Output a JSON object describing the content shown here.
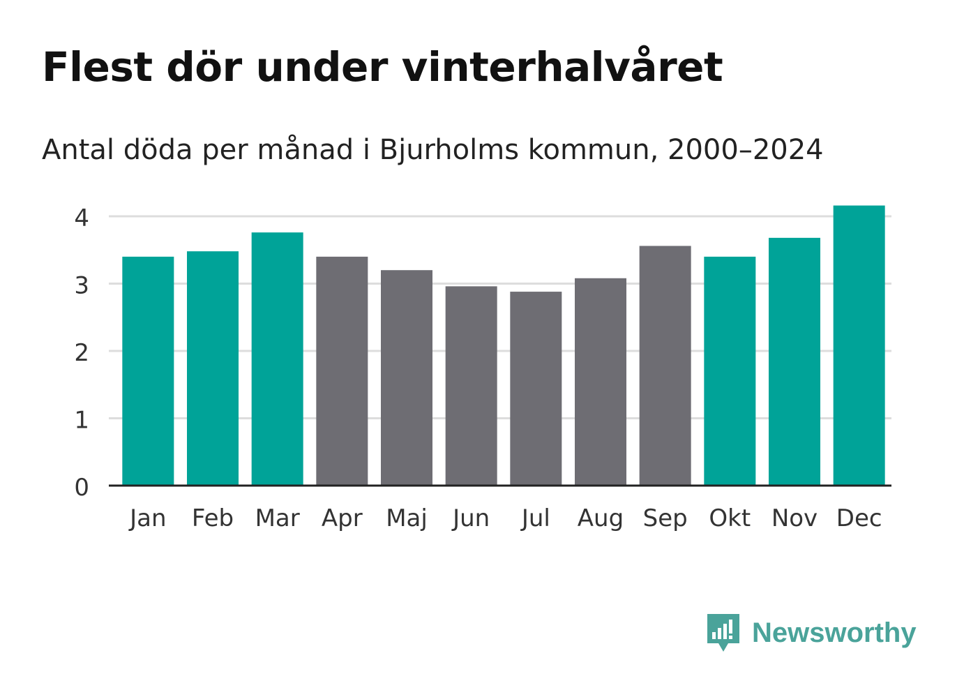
{
  "title": "Flest dör under vinterhalvåret",
  "subtitle": "Antal döda per månad i Bjurholms kommun, 2000–2024",
  "brand": {
    "name": "Newsworthy",
    "color": "#4aa39a",
    "icon": "bar-chart-speech-icon"
  },
  "colors": {
    "winter": "#00a398",
    "summer": "#6e6d73",
    "grid": "#dddddd",
    "axis": "#222222"
  },
  "chart_data": {
    "type": "bar",
    "title": "Flest dör under vinterhalvåret",
    "subtitle": "Antal döda per månad i Bjurholms kommun, 2000–2024",
    "xlabel": "",
    "ylabel": "",
    "ylim": [
      0,
      4.2
    ],
    "yticks": [
      0,
      1,
      2,
      3,
      4
    ],
    "grid": true,
    "categories": [
      "Jan",
      "Feb",
      "Mar",
      "Apr",
      "Maj",
      "Jun",
      "Jul",
      "Aug",
      "Sep",
      "Okt",
      "Nov",
      "Dec"
    ],
    "values": [
      3.4,
      3.48,
      3.76,
      3.4,
      3.2,
      2.96,
      2.88,
      3.08,
      3.56,
      3.4,
      3.68,
      4.16
    ],
    "highlight": [
      "winter",
      "winter",
      "winter",
      "summer",
      "summer",
      "summer",
      "summer",
      "summer",
      "summer",
      "winter",
      "winter",
      "winter"
    ]
  }
}
